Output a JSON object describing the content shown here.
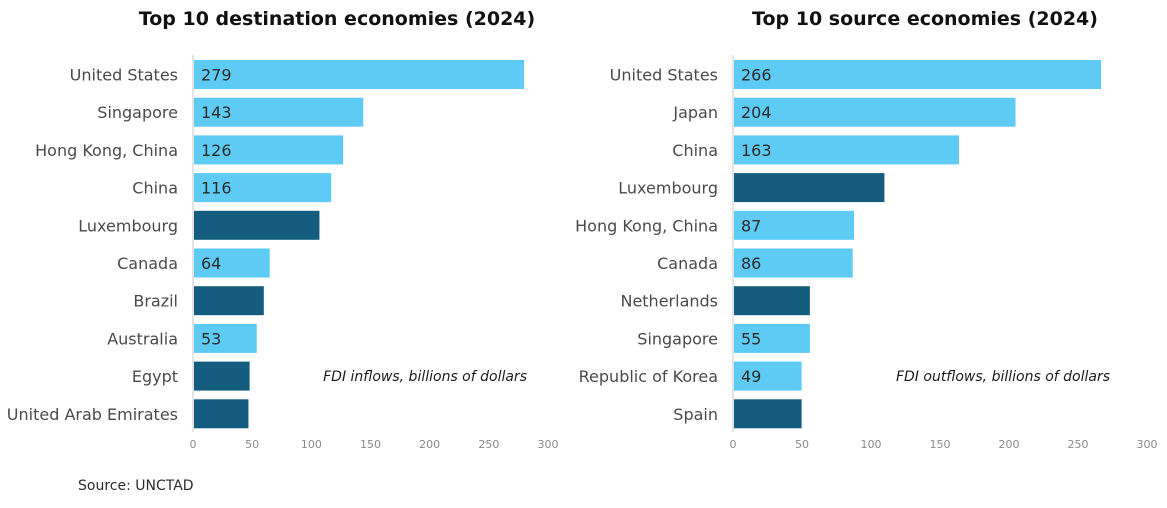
{
  "source": "Source: UNCTAD",
  "colors": {
    "highlight": "#5ecbf4",
    "default": "#155d7f",
    "axis": "#c8c8c8"
  },
  "chart_data": [
    {
      "type": "bar",
      "orientation": "horizontal",
      "title": "Top 10 destination economies (2024)",
      "note": "FDI inflows, billions of  dollars",
      "xlim": [
        0,
        300
      ],
      "ticks": [
        0,
        50,
        100,
        150,
        200,
        250,
        300
      ],
      "grid": false,
      "categories": [
        "United States",
        "Singapore",
        "Hong Kong, China",
        "China",
        "Luxembourg",
        "Canada",
        "Brazil",
        "Australia",
        "Egypt",
        "United Arab Emirates"
      ],
      "values": [
        279,
        143,
        126,
        116,
        106,
        64,
        59,
        53,
        47,
        46
      ],
      "labels": [
        "279",
        "143",
        "126",
        "116",
        "",
        "64",
        "",
        "53",
        "",
        ""
      ],
      "highlighted": [
        true,
        true,
        true,
        true,
        false,
        true,
        false,
        true,
        false,
        false
      ]
    },
    {
      "type": "bar",
      "orientation": "horizontal",
      "title": "Top 10 source economies (2024)",
      "note": "FDI outflows, billions of  dollars",
      "xlim": [
        0,
        300
      ],
      "ticks": [
        0,
        50,
        100,
        150,
        200,
        250,
        300
      ],
      "grid": false,
      "categories": [
        "United States",
        "Japan",
        "China",
        "Luxembourg",
        "Hong Kong, China",
        "Canada",
        "Netherlands",
        "Singapore",
        "Republic of Korea",
        "Spain"
      ],
      "values": [
        266,
        204,
        163,
        109,
        87,
        86,
        55,
        55,
        49,
        49
      ],
      "labels": [
        "266",
        "204",
        "163",
        "",
        "87",
        "86",
        "",
        "55",
        "49",
        ""
      ],
      "highlighted": [
        true,
        true,
        true,
        false,
        true,
        true,
        false,
        true,
        true,
        false
      ]
    }
  ]
}
